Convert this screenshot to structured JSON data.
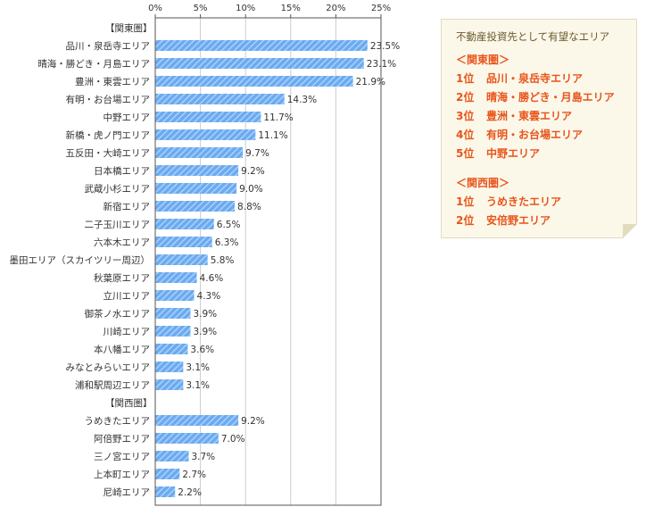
{
  "chart_data": {
    "type": "bar",
    "orientation": "horizontal",
    "xlim": [
      0,
      25
    ],
    "x_ticks": [
      "0%",
      "5%",
      "10%",
      "15%",
      "20%",
      "25%"
    ],
    "rows": [
      {
        "kind": "section",
        "label": "【関東圏】"
      },
      {
        "kind": "bar",
        "label": "品川・泉岳寺エリア",
        "value": 23.5,
        "value_label": "23.5%"
      },
      {
        "kind": "bar",
        "label": "晴海・勝どき・月島エリア",
        "value": 23.1,
        "value_label": "23.1%"
      },
      {
        "kind": "bar",
        "label": "豊洲・東雲エリア",
        "value": 21.9,
        "value_label": "21.9%"
      },
      {
        "kind": "bar",
        "label": "有明・お台場エリア",
        "value": 14.3,
        "value_label": "14.3%"
      },
      {
        "kind": "bar",
        "label": "中野エリア",
        "value": 11.7,
        "value_label": "11.7%"
      },
      {
        "kind": "bar",
        "label": "新橋・虎ノ門エリア",
        "value": 11.1,
        "value_label": "11.1%"
      },
      {
        "kind": "bar",
        "label": "五反田・大崎エリア",
        "value": 9.7,
        "value_label": "9.7%"
      },
      {
        "kind": "bar",
        "label": "日本橋エリア",
        "value": 9.2,
        "value_label": "9.2%"
      },
      {
        "kind": "bar",
        "label": "武蔵小杉エリア",
        "value": 9.0,
        "value_label": "9.0%"
      },
      {
        "kind": "bar",
        "label": "新宿エリア",
        "value": 8.8,
        "value_label": "8.8%"
      },
      {
        "kind": "bar",
        "label": "二子玉川エリア",
        "value": 6.5,
        "value_label": "6.5%"
      },
      {
        "kind": "bar",
        "label": "六本木エリア",
        "value": 6.3,
        "value_label": "6.3%"
      },
      {
        "kind": "bar",
        "label": "墨田エリア（スカイツリー周辺）",
        "value": 5.8,
        "value_label": "5.8%"
      },
      {
        "kind": "bar",
        "label": "秋葉原エリア",
        "value": 4.6,
        "value_label": "4.6%"
      },
      {
        "kind": "bar",
        "label": "立川エリア",
        "value": 4.3,
        "value_label": "4.3%"
      },
      {
        "kind": "bar",
        "label": "御茶ノ水エリア",
        "value": 3.9,
        "value_label": "3.9%"
      },
      {
        "kind": "bar",
        "label": "川崎エリア",
        "value": 3.9,
        "value_label": "3.9%"
      },
      {
        "kind": "bar",
        "label": "本八幡エリア",
        "value": 3.6,
        "value_label": "3.6%"
      },
      {
        "kind": "bar",
        "label": "みなとみらいエリア",
        "value": 3.1,
        "value_label": "3.1%"
      },
      {
        "kind": "bar",
        "label": "浦和駅周辺エリア",
        "value": 3.1,
        "value_label": "3.1%"
      },
      {
        "kind": "section",
        "label": "【関西圏】"
      },
      {
        "kind": "bar",
        "label": "うめきたエリア",
        "value": 9.2,
        "value_label": "9.2%"
      },
      {
        "kind": "bar",
        "label": "阿倍野エリア",
        "value": 7.0,
        "value_label": "7.0%"
      },
      {
        "kind": "bar",
        "label": "三ノ宮エリア",
        "value": 3.7,
        "value_label": "3.7%"
      },
      {
        "kind": "bar",
        "label": "上本町エリア",
        "value": 2.7,
        "value_label": "2.7%"
      },
      {
        "kind": "bar",
        "label": "尼崎エリア",
        "value": 2.2,
        "value_label": "2.2%"
      }
    ],
    "grid": true,
    "colors": {
      "bar": "#6aaaf0",
      "bar_stripe": "#a9cffa",
      "grid": "#cccccc",
      "axis": "#555555",
      "text": "#333333"
    }
  },
  "note": {
    "title": "不動産投資先として有望なエリア",
    "groups": [
      {
        "heading": "＜関東圏＞",
        "items": [
          {
            "rank": "1位",
            "name": "品川・泉岳寺エリア"
          },
          {
            "rank": "2位",
            "name": "晴海・勝どき・月島エリア"
          },
          {
            "rank": "3位",
            "name": "豊洲・東雲エリア"
          },
          {
            "rank": "4位",
            "name": "有明・お台場エリア"
          },
          {
            "rank": "5位",
            "name": "中野エリア"
          }
        ]
      },
      {
        "heading": "＜関西圏＞",
        "items": [
          {
            "rank": "1位",
            "name": "うめきたエリア"
          },
          {
            "rank": "2位",
            "name": "安倍野エリア"
          }
        ]
      }
    ],
    "colors": {
      "accent": "#e8541a",
      "title": "#6b5a2c",
      "background": "#fbf8ea",
      "border": "#e2dbbd"
    }
  }
}
